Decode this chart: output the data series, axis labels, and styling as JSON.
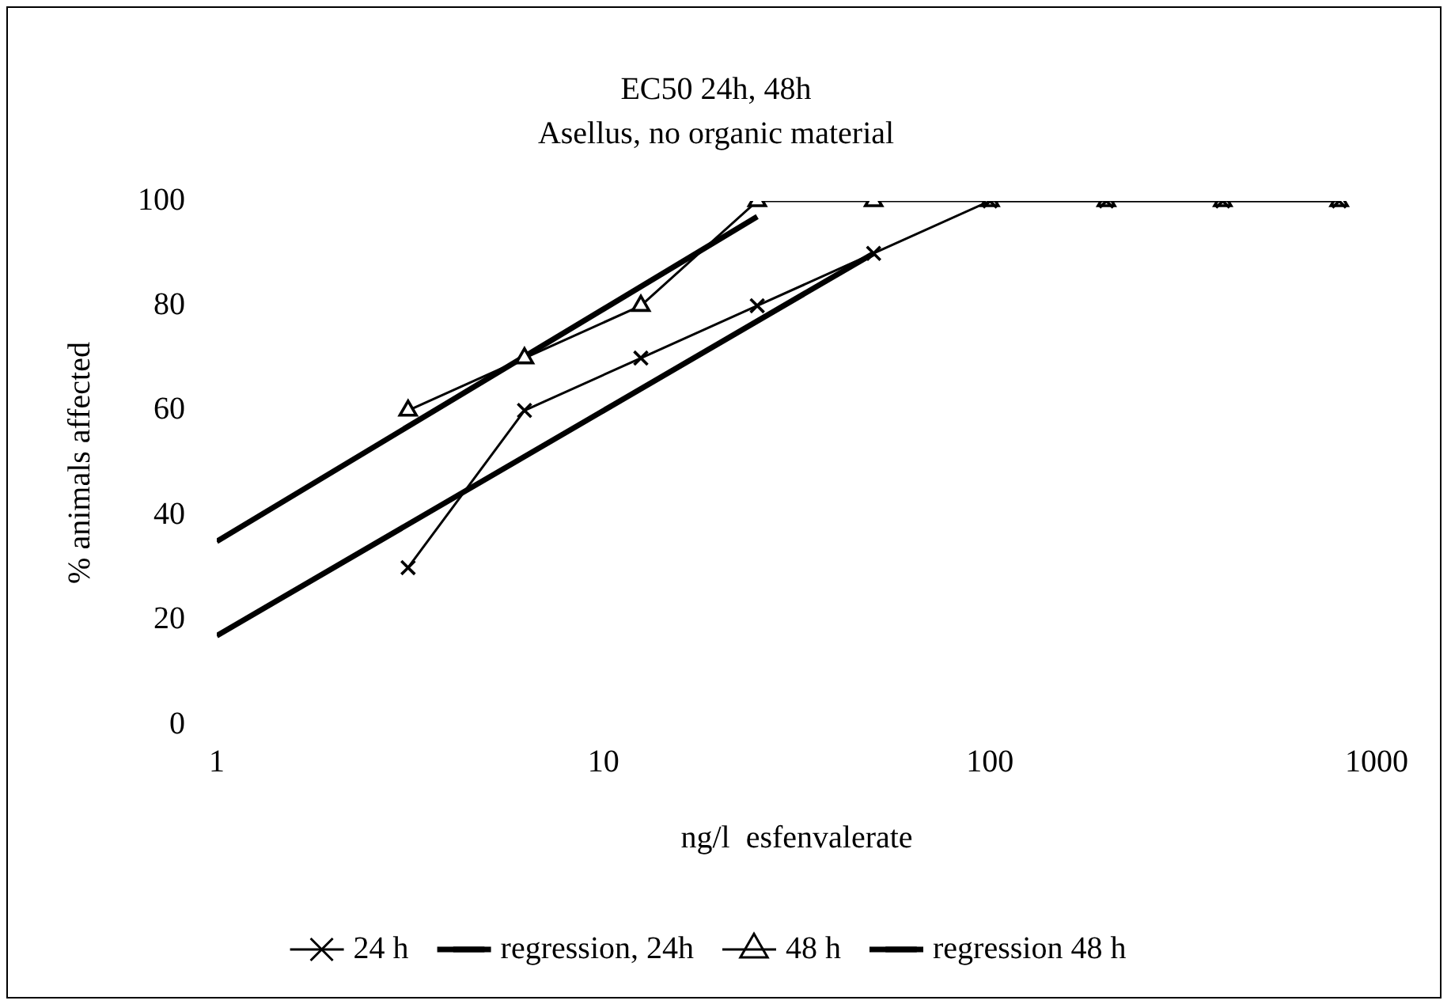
{
  "chart_data": {
    "type": "line",
    "title": "EC50 24h, 48h",
    "subtitle": "Asellus, no organic material",
    "xlabel": "ng/l  esfenvalerate",
    "ylabel": "% animals affected",
    "log": "x",
    "xlim": [
      1,
      1000
    ],
    "xticks": [
      1,
      10,
      100,
      1000
    ],
    "ylim": [
      0,
      100
    ],
    "yticks": [
      0,
      20,
      40,
      60,
      80,
      100
    ],
    "grid": false,
    "legend": "bottom",
    "series": [
      {
        "name": "24 h",
        "color": "#000000",
        "marker": "cross",
        "x": [
          3.125,
          6.25,
          12.5,
          25,
          50,
          100,
          200,
          400,
          800
        ],
        "values": [
          30,
          60,
          70,
          80,
          90,
          100,
          100,
          100,
          100
        ]
      },
      {
        "name": "regression, 24h",
        "color": "#000000",
        "marker": "none",
        "x": [
          1,
          50
        ],
        "values": [
          17,
          90
        ]
      },
      {
        "name": "48 h",
        "color": "#000000",
        "marker": "triangle",
        "x": [
          3.125,
          6.25,
          12.5,
          25,
          50,
          100,
          200,
          400,
          800
        ],
        "values": [
          60,
          70,
          80,
          100,
          100,
          100,
          100,
          100,
          100
        ]
      },
      {
        "name": "regression 48 h",
        "color": "#000000",
        "marker": "none",
        "x": [
          1,
          25
        ],
        "values": [
          35,
          97
        ]
      }
    ]
  }
}
